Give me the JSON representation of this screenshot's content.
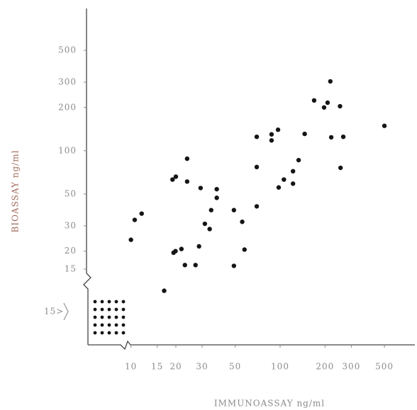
{
  "chart_data": {
    "type": "scatter",
    "x_label": "IMMUNOASSAY ng/ml",
    "y_label": "BIOASSAY ng/ml",
    "annotation": "15>",
    "log_x": true,
    "log_y": true,
    "grid": false,
    "color": "#151515",
    "xlim": [
      9,
      800
    ],
    "ylim": [
      9,
      1000
    ],
    "xticks": [
      10,
      15,
      20,
      30,
      50,
      100,
      200,
      300,
      500
    ],
    "yticks": [
      15,
      20,
      30,
      50,
      100,
      200,
      300,
      500
    ],
    "x": [
      10,
      10.6,
      11.8,
      16.7,
      19.3,
      19.9,
      21.8,
      19,
      20,
      23.8,
      23.8,
      23,
      27.1,
      28.6,
      29.3,
      31.3,
      33.7,
      34.5,
      37.6,
      37.6,
      49,
      49,
      55.7,
      57.7,
      69.7,
      69.7,
      69.7,
      87.6,
      87.6,
      96.8,
      97.8,
      106,
      122,
      122,
      133,
      146,
      169,
      197,
      208,
      217,
      220,
      252,
      254,
      265,
      500
    ],
    "values": [
      24,
      33,
      36.5,
      10.6,
      19.5,
      20,
      20.7,
      63,
      66,
      88,
      61,
      16,
      16,
      21.6,
      55,
      31,
      28.5,
      38.6,
      54,
      47,
      38.6,
      15.8,
      32,
      20.5,
      41,
      77,
      125,
      130,
      118,
      140,
      55.5,
      63,
      72,
      59,
      86,
      131,
      224,
      200,
      216,
      304,
      124,
      204,
      76,
      125,
      149
    ]
  }
}
